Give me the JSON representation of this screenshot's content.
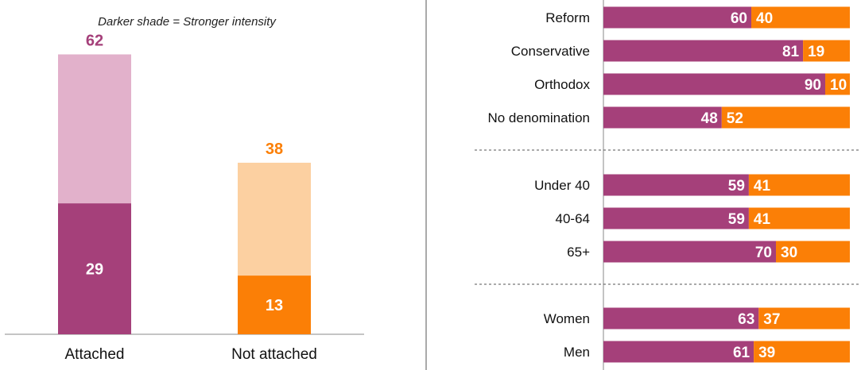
{
  "note": "Darker shade = Stronger intensity",
  "colors": {
    "attached_strong": "#A5407A",
    "attached_light": "#E2B1CB",
    "not_attached_strong": "#FB7F06",
    "not_attached_light": "#FCD0A1",
    "divider": "#555555",
    "axis": "#888888"
  },
  "chart_data": [
    {
      "type": "bar",
      "stacked": true,
      "categories": [
        "Attached",
        "Not attached"
      ],
      "totals": [
        62,
        38
      ],
      "strong": [
        29,
        13
      ],
      "ylim": [
        0,
        70
      ],
      "grid": false
    },
    {
      "type": "bar",
      "orientation": "horizontal",
      "stacked": true,
      "groups": [
        {
          "categories": [
            "Reform",
            "Conservative",
            "Orthodox",
            "No denomination"
          ],
          "attached": [
            60,
            81,
            90,
            48
          ],
          "not_attached": [
            40,
            19,
            10,
            52
          ]
        },
        {
          "categories": [
            "Under 40",
            "40-64",
            "65+"
          ],
          "attached": [
            59,
            59,
            70
          ],
          "not_attached": [
            41,
            41,
            30
          ]
        },
        {
          "categories": [
            "Women",
            "Men"
          ],
          "attached": [
            63,
            61
          ],
          "not_attached": [
            37,
            39
          ]
        }
      ],
      "xlim": [
        0,
        100
      ],
      "grid": false
    }
  ]
}
